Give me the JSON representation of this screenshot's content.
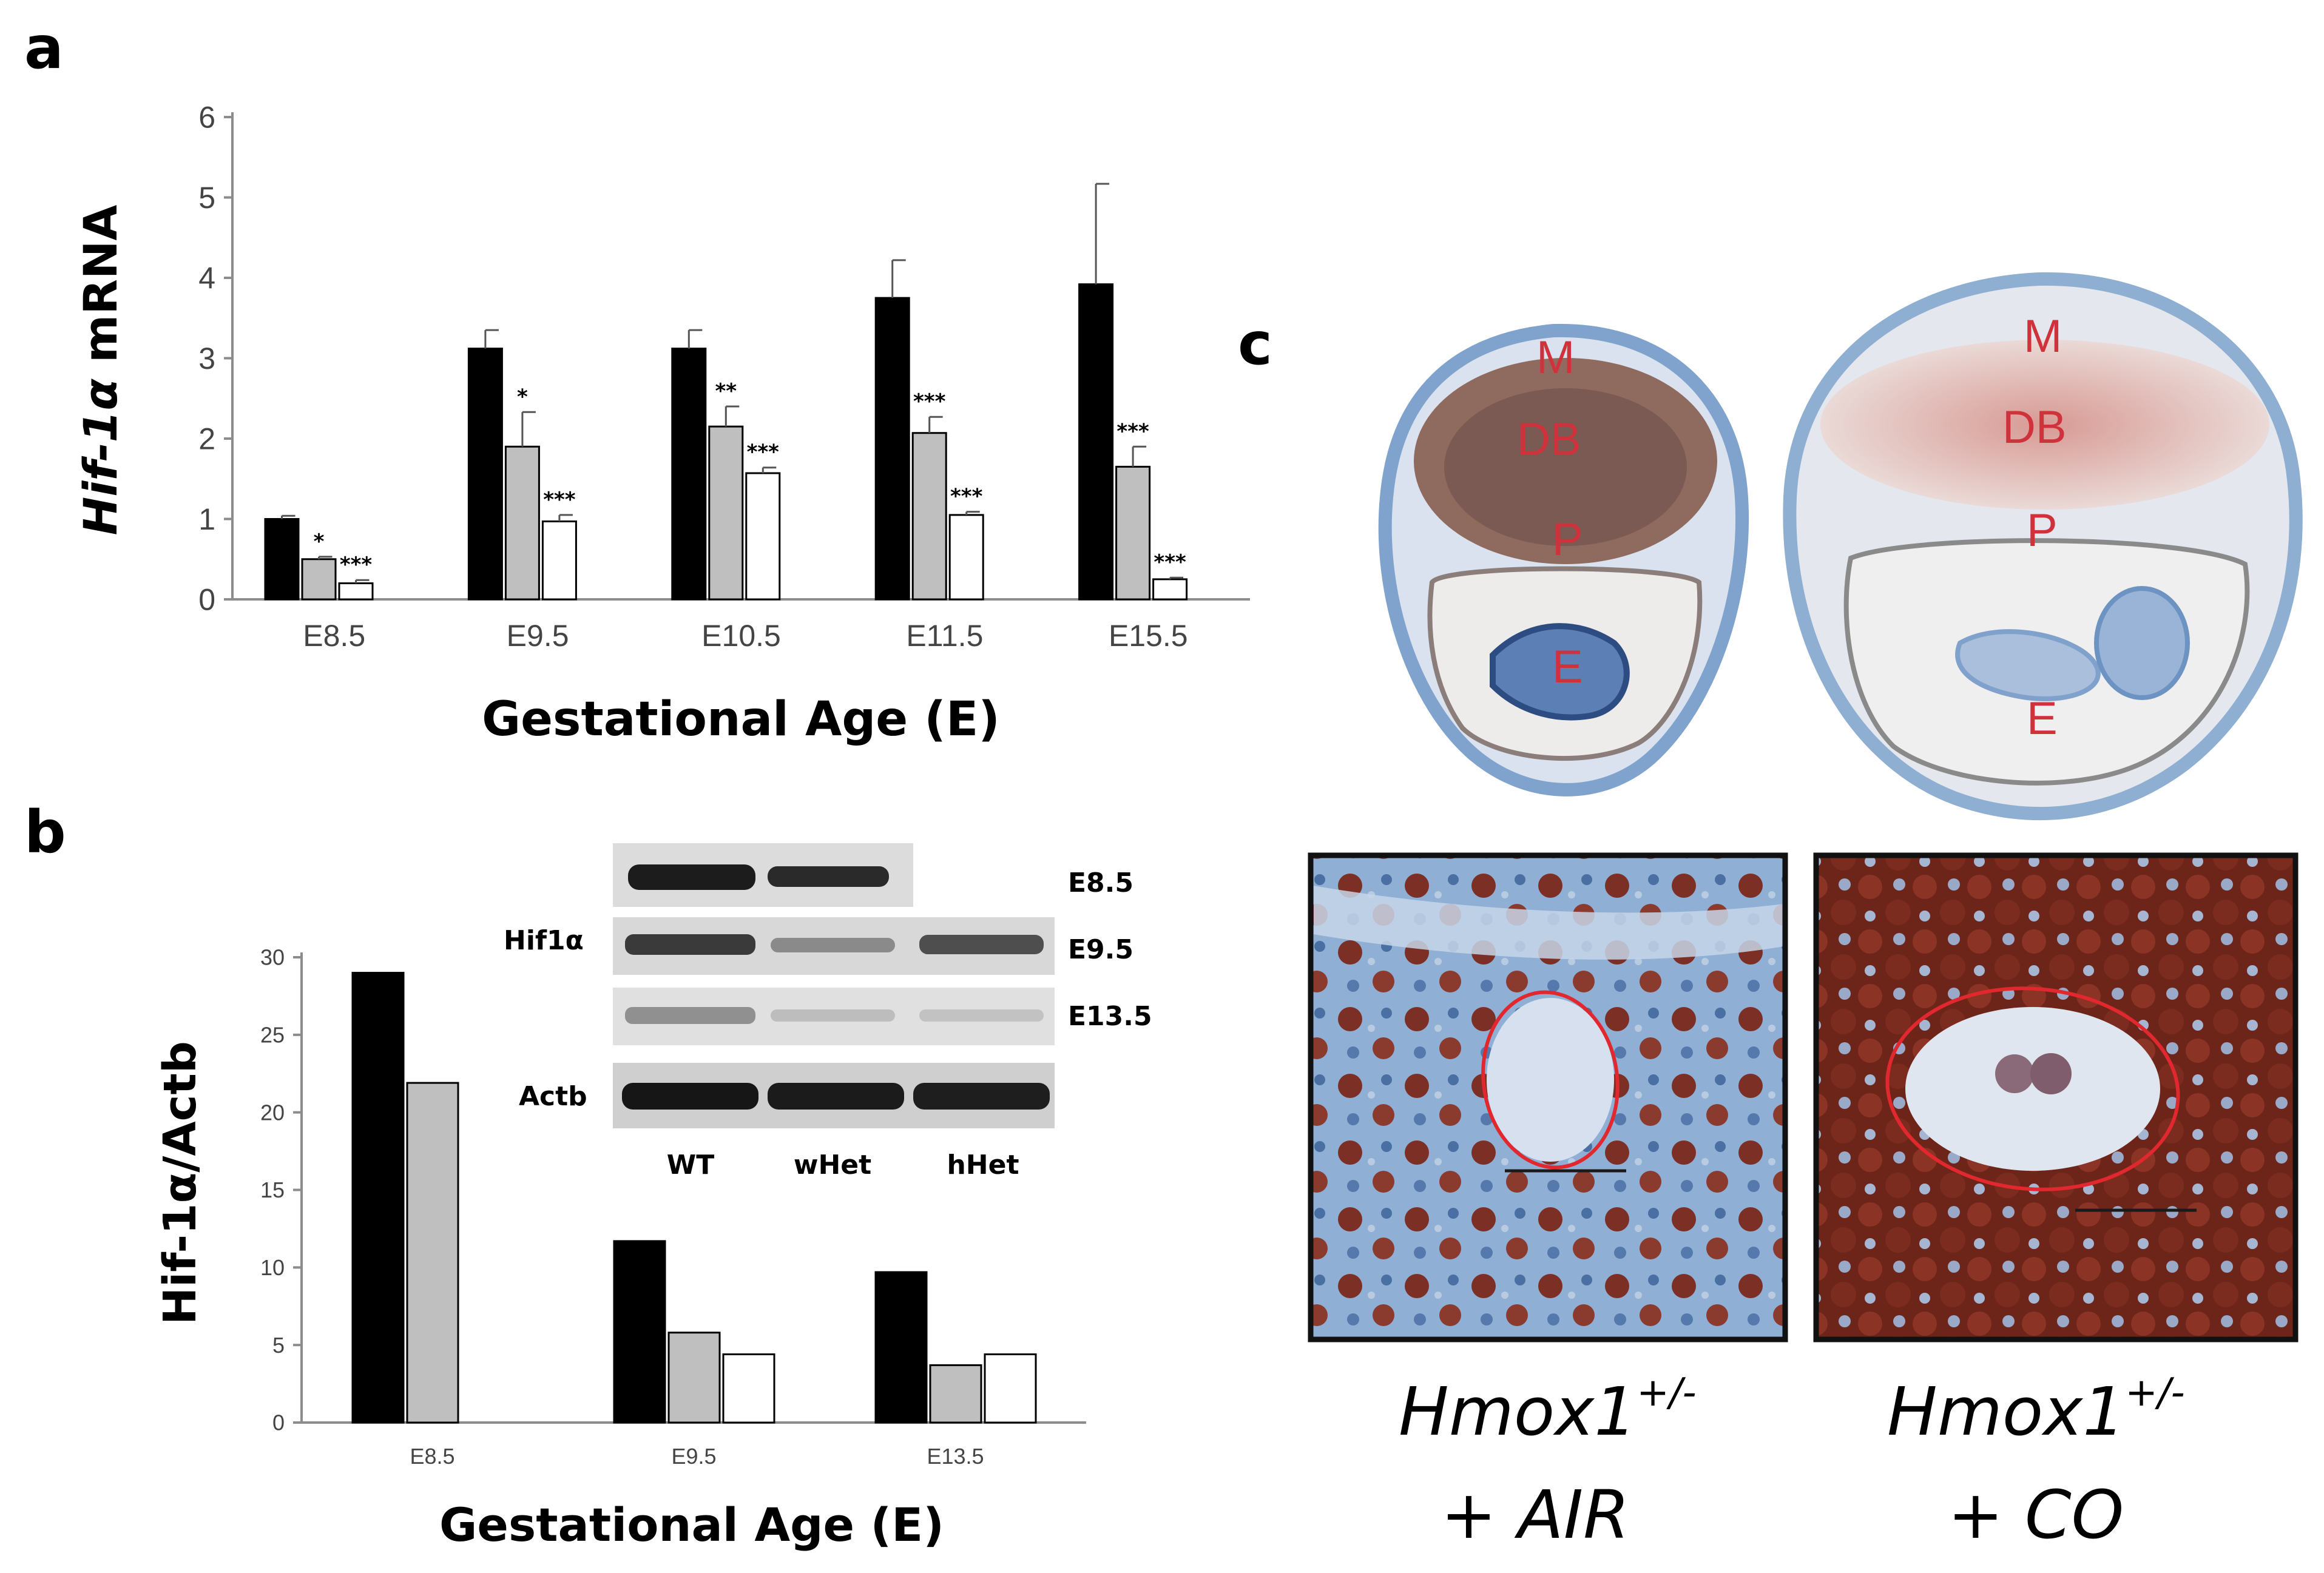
{
  "panel_letters": {
    "a": "a",
    "b": "b",
    "c": "c"
  },
  "colors": {
    "wt": "#000000",
    "whet": "#bfbfbf",
    "hhet": "#ffffff",
    "stain_brown": "#7a2a1e",
    "stain_blue": "#7fa6cc",
    "label_red": "#d0323c"
  },
  "chart_data": [
    {
      "type": "bar",
      "panel": "a",
      "categories": [
        "E8.5",
        "E9.5",
        "E10.5",
        "E11.5",
        "E15.5"
      ],
      "series": [
        {
          "values": [
            1.0,
            3.12,
            3.12,
            3.75,
            3.92
          ],
          "errors": [
            0.04,
            0.23,
            0.23,
            0.47,
            1.25
          ],
          "color": "#000000"
        },
        {
          "values": [
            0.5,
            1.9,
            2.15,
            2.07,
            1.65
          ],
          "errors": [
            0.03,
            0.43,
            0.25,
            0.2,
            0.25
          ],
          "color": "#bfbfbf"
        },
        {
          "values": [
            0.2,
            0.97,
            1.57,
            1.05,
            0.25
          ],
          "errors": [
            0.04,
            0.08,
            0.07,
            0.04,
            0.02
          ],
          "color": "#ffffff"
        }
      ],
      "significance": [
        [
          "",
          "*",
          "***"
        ],
        [
          "",
          "*",
          "***"
        ],
        [
          "",
          "**",
          "***"
        ],
        [
          "",
          "***",
          "***"
        ],
        [
          "",
          "***",
          "***"
        ]
      ],
      "ylabel_prefix": "Hif-1",
      "ylabel_greek": "α",
      "ylabel_suffix": " mRNA",
      "xlabel": "Gestational Age (E)",
      "ylim": [
        0,
        6
      ],
      "yticks": [
        "0",
        "1",
        "2",
        "3",
        "4",
        "5",
        "6"
      ]
    },
    {
      "type": "bar",
      "panel": "b",
      "categories": [
        "E8.5",
        "E9.5",
        "E13.5"
      ],
      "series": [
        {
          "values": [
            29.0,
            11.7,
            9.7
          ],
          "color": "#000000"
        },
        {
          "values": [
            21.9,
            5.8,
            3.7
          ],
          "color": "#bfbfbf"
        },
        {
          "values": [
            null,
            4.4,
            4.4
          ],
          "color": "#ffffff"
        }
      ],
      "ylabel": "Hif-1α/Actb",
      "xlabel": "Gestational Age (E)",
      "ylim": [
        0,
        30
      ],
      "yticks": [
        "0",
        "5",
        "10",
        "15",
        "20",
        "25",
        "30"
      ]
    }
  ],
  "blot": {
    "row_labels": [
      "E8.5",
      "E9.5",
      "E13.5"
    ],
    "protein_label": "Hif1α",
    "loading_label": "Actb",
    "lane_labels": [
      "WT",
      "wHet",
      "hHet"
    ]
  },
  "tissue": {
    "left_labels": [
      "M",
      "DB",
      "P",
      "E"
    ],
    "right_labels": [
      "M",
      "DB",
      "P",
      "E"
    ],
    "caption_left": {
      "gene": "Hmox1",
      "sup": "+/-",
      "treatment": "+ AIR"
    },
    "caption_right": {
      "gene": "Hmox1",
      "sup": "+/-",
      "treatment": "+ CO"
    }
  }
}
